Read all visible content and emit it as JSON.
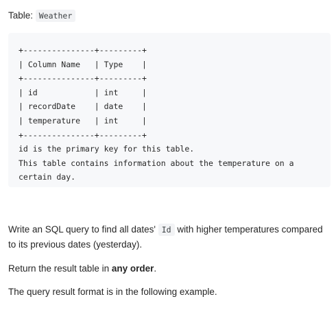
{
  "table_label": {
    "prefix": "Table: ",
    "name": "Weather"
  },
  "schema_block": {
    "lines": [
      "+---------------+---------+",
      "| Column Name   | Type    |",
      "+---------------+---------+",
      "| id            | int     |",
      "| recordDate    | date    |",
      "| temperature   | int     |",
      "+---------------+---------+",
      "id is the primary key for this table.",
      "This table contains information about the temperature on a",
      "certain day."
    ]
  },
  "description": {
    "p1_before": "Write an SQL query to find all dates' ",
    "p1_code": "Id",
    "p1_after": " with higher temperatures compared to its previous dates (yesterday).",
    "p2_before": "Return the result table in ",
    "p2_bold": "any order",
    "p2_after": ".",
    "p3": "The query result format is in the following example."
  }
}
